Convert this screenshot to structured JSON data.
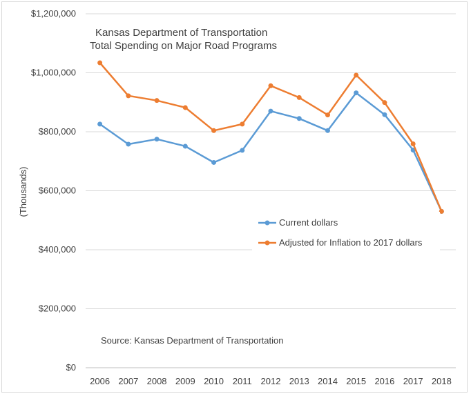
{
  "chart_data": {
    "type": "line",
    "title": [
      "Kansas Department of Transportation",
      "Total Spending on Major Road Programs"
    ],
    "ylabel": "(Thousands)",
    "xlabel": "",
    "categories": [
      "2006",
      "2007",
      "2008",
      "2009",
      "2010",
      "2011",
      "2012",
      "2013",
      "2014",
      "2015",
      "2016",
      "2017",
      "2018"
    ],
    "ylim": [
      0,
      1200000
    ],
    "yticks": [
      0,
      200000,
      400000,
      600000,
      800000,
      1000000,
      1200000
    ],
    "ytick_labels": [
      "$0",
      "$200,000",
      "$400,000",
      "$600,000",
      "$800,000",
      "$1,000,000",
      "$1,200,000"
    ],
    "grid": true,
    "legend_position": "right-middle",
    "annotation": "Source: Kansas Department of Transportation",
    "series": [
      {
        "name": "Current dollars",
        "color": "#5b9bd5",
        "values": [
          826000,
          758000,
          775000,
          751000,
          696000,
          737000,
          870000,
          845000,
          804000,
          932000,
          858000,
          738000,
          530000
        ]
      },
      {
        "name": "Adjusted for Inflation to 2017 dollars",
        "color": "#ed7d31",
        "values": [
          1034000,
          922000,
          906000,
          882000,
          804000,
          826000,
          956000,
          916000,
          857000,
          992000,
          899000,
          759000,
          530000
        ]
      }
    ]
  }
}
